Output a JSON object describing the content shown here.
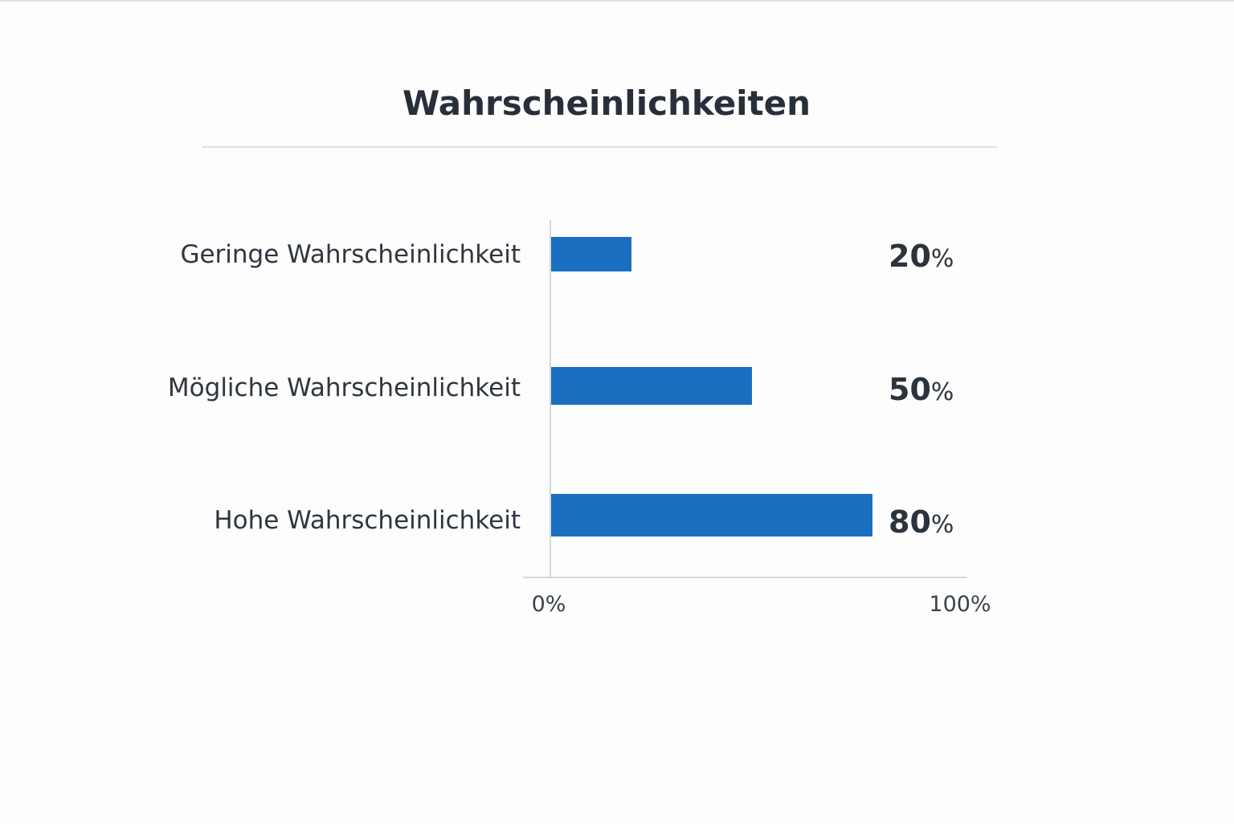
{
  "chart_data": {
    "type": "bar",
    "orientation": "horizontal",
    "title": "Wahrscheinlichkeiten",
    "categories": [
      "Geringe Wahrscheinlichkeit",
      "Mögliche Wahrscheinlichkeit",
      "Hohe Wahrscheinlichkeit"
    ],
    "values": [
      20,
      50,
      80
    ],
    "value_labels": [
      "20%",
      "50%",
      "80%"
    ],
    "xlim": [
      0,
      100
    ],
    "x_tick_labels": [
      "0%",
      "100%"
    ],
    "xlabel": "",
    "ylabel": "",
    "grid": false,
    "colors": {
      "bar": "#1a6fc1",
      "text": "#2b333d",
      "axis": "#d5d8db"
    }
  }
}
